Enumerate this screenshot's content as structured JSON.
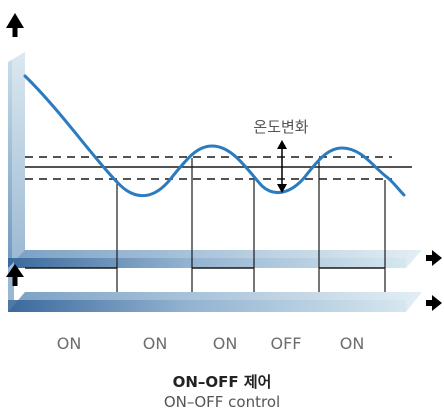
{
  "diagram": {
    "annotation": "온도변화",
    "states": [
      "ON",
      "ON",
      "ON",
      "OFF",
      "ON"
    ],
    "title": "ON–OFF 제어",
    "subtitle": "ON–OFF control"
  },
  "colors": {
    "curve": "#2a7bbf",
    "lines": "#1a1a1a",
    "axis_light": "#c8dce8",
    "axis_dark": "#2f5f95",
    "axis_mid": "#6f97bf"
  }
}
